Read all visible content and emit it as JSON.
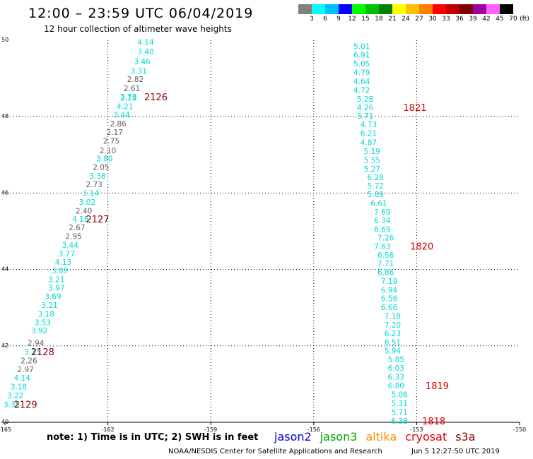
{
  "header": {
    "title": "12:00 – 23:59 UTC 06/04/2019",
    "subtitle": "12 hour collection of altimeter wave heights"
  },
  "color_scale": {
    "unit": "(ft)",
    "bins": [
      {
        "label": "3",
        "color": "#808080"
      },
      {
        "label": "6",
        "color": "#00ffff"
      },
      {
        "label": "9",
        "color": "#00bfff"
      },
      {
        "label": "12",
        "color": "#0000ff"
      },
      {
        "label": "15",
        "color": "#00ff00"
      },
      {
        "label": "18",
        "color": "#00c000"
      },
      {
        "label": "21",
        "color": "#008000"
      },
      {
        "label": "24",
        "color": "#ffff00"
      },
      {
        "label": "27",
        "color": "#ffc000"
      },
      {
        "label": "30",
        "color": "#ff8000"
      },
      {
        "label": "33",
        "color": "#ff0000"
      },
      {
        "label": "36",
        "color": "#c00000"
      },
      {
        "label": "39",
        "color": "#800000"
      },
      {
        "label": "42",
        "color": "#a000a0"
      },
      {
        "label": "45",
        "color": "#ff60ff"
      },
      {
        "label": "70",
        "color": "#000000"
      }
    ]
  },
  "chart_data": {
    "type": "scatter",
    "title": "12:00 – 23:59 UTC 06/04/2019",
    "subtitle": "12 hour collection of altimeter wave heights",
    "xlim": [
      -165,
      -150
    ],
    "ylim": [
      40,
      50
    ],
    "x_ticks": [
      "-165",
      "-162",
      "-159",
      "-156",
      "-153",
      "-150"
    ],
    "y_ticks": [
      "40",
      "42",
      "44",
      "46",
      "48",
      "50"
    ],
    "grid": true,
    "series": [
      {
        "color": "#00d8d8",
        "grey_color": "#606060",
        "tracks": [
          {
            "points": [
              {
                "x": -160.9,
                "y": 49.95,
                "v": "4.14",
                "c": 0
              },
              {
                "x": -160.9,
                "y": 49.7,
                "v": "3.40",
                "c": 0
              },
              {
                "x": -161.0,
                "y": 49.45,
                "v": "3.46",
                "c": 0
              },
              {
                "x": -161.1,
                "y": 49.2,
                "v": "3.31",
                "c": 0
              },
              {
                "x": -161.2,
                "y": 48.98,
                "v": "2.82",
                "c": 1
              },
              {
                "x": -161.3,
                "y": 48.74,
                "v": "2.61",
                "c": 1
              },
              {
                "x": -161.4,
                "y": 48.52,
                "v": "2.73",
                "c": 0
              },
              {
                "x": -161.4,
                "y": 48.49,
                "v": "3.19",
                "c": 0
              },
              {
                "x": -161.5,
                "y": 48.27,
                "v": "4.21",
                "c": 0
              },
              {
                "x": -161.6,
                "y": 48.05,
                "v": "3.44",
                "c": 0
              },
              {
                "x": -161.7,
                "y": 47.82,
                "v": "2.86",
                "c": 1
              },
              {
                "x": -161.8,
                "y": 47.6,
                "v": "2.17",
                "c": 1
              },
              {
                "x": -161.9,
                "y": 47.37,
                "v": "2.75",
                "c": 1
              },
              {
                "x": -162.0,
                "y": 47.12,
                "v": "2.10",
                "c": 1
              },
              {
                "x": -162.1,
                "y": 46.9,
                "v": "3.80",
                "c": 0
              },
              {
                "x": -162.2,
                "y": 46.68,
                "v": "2.05",
                "c": 1
              },
              {
                "x": -162.3,
                "y": 46.45,
                "v": "3.38",
                "c": 0
              },
              {
                "x": -162.4,
                "y": 46.23,
                "v": "2.73",
                "c": 1
              },
              {
                "x": -162.5,
                "y": 46.0,
                "v": "3.14",
                "c": 0
              },
              {
                "x": -162.6,
                "y": 45.77,
                "v": "3.02",
                "c": 0
              },
              {
                "x": -162.7,
                "y": 45.54,
                "v": "2.40",
                "c": 1
              },
              {
                "x": -162.8,
                "y": 45.32,
                "v": "4.18",
                "c": 0
              },
              {
                "x": -162.9,
                "y": 45.1,
                "v": "2.67",
                "c": 1
              },
              {
                "x": -163.0,
                "y": 44.87,
                "v": "2.95",
                "c": 1
              },
              {
                "x": -163.1,
                "y": 44.64,
                "v": "3.44",
                "c": 0
              },
              {
                "x": -163.2,
                "y": 44.42,
                "v": "3.77",
                "c": 0
              },
              {
                "x": -163.3,
                "y": 44.2,
                "v": "4.13",
                "c": 0
              },
              {
                "x": -163.4,
                "y": 43.97,
                "v": "3.89",
                "c": 0
              },
              {
                "x": -163.5,
                "y": 43.74,
                "v": "3.21",
                "c": 0
              },
              {
                "x": -163.5,
                "y": 43.52,
                "v": "3.97",
                "c": 0
              },
              {
                "x": -163.6,
                "y": 43.3,
                "v": "3.69",
                "c": 0
              },
              {
                "x": -163.7,
                "y": 43.07,
                "v": "3.21",
                "c": 0
              },
              {
                "x": -163.8,
                "y": 42.84,
                "v": "3.18",
                "c": 0
              },
              {
                "x": -163.9,
                "y": 42.62,
                "v": "3.53",
                "c": 0
              },
              {
                "x": -164.0,
                "y": 42.4,
                "v": "3.92",
                "c": 0
              },
              {
                "x": -164.1,
                "y": 42.08,
                "v": "2.94",
                "c": 1
              },
              {
                "x": -164.2,
                "y": 41.85,
                "v": "3.35",
                "c": 0
              },
              {
                "x": -164.3,
                "y": 41.62,
                "v": "2.26",
                "c": 1
              },
              {
                "x": -164.4,
                "y": 41.39,
                "v": "2.97",
                "c": 1
              },
              {
                "x": -164.5,
                "y": 41.16,
                "v": "4.14",
                "c": 0
              },
              {
                "x": -164.6,
                "y": 40.93,
                "v": "3.18",
                "c": 0
              },
              {
                "x": -164.7,
                "y": 40.7,
                "v": "3.22",
                "c": 0
              },
              {
                "x": -164.8,
                "y": 40.47,
                "v": "3.35",
                "c": 0
              }
            ],
            "time_labels": [
              {
                "x": -160.6,
                "y": 48.52,
                "t": "2126"
              },
              {
                "x": -162.3,
                "y": 45.32,
                "t": "2127"
              },
              {
                "x": -163.9,
                "y": 41.85,
                "t": "2128"
              },
              {
                "x": -164.4,
                "y": 40.47,
                "t": "2129"
              }
            ]
          },
          {
            "points": [
              {
                "x": -154.6,
                "y": 49.84,
                "v": "5.01",
                "c": 0
              },
              {
                "x": -154.6,
                "y": 49.62,
                "v": "6.91",
                "c": 0
              },
              {
                "x": -154.6,
                "y": 49.39,
                "v": "5.05",
                "c": 0
              },
              {
                "x": -154.6,
                "y": 49.16,
                "v": "4.79",
                "c": 0
              },
              {
                "x": -154.6,
                "y": 48.93,
                "v": "4.64",
                "c": 0
              },
              {
                "x": -154.6,
                "y": 48.7,
                "v": "4.72",
                "c": 0
              },
              {
                "x": -154.5,
                "y": 48.47,
                "v": "5.28",
                "c": 0
              },
              {
                "x": -154.5,
                "y": 48.24,
                "v": "4.26",
                "c": 0
              },
              {
                "x": -154.5,
                "y": 48.02,
                "v": "3.71",
                "c": 0
              },
              {
                "x": -154.4,
                "y": 47.8,
                "v": "4.73",
                "c": 0
              },
              {
                "x": -154.4,
                "y": 47.57,
                "v": "6.21",
                "c": 0
              },
              {
                "x": -154.4,
                "y": 47.33,
                "v": "4.87",
                "c": 0
              },
              {
                "x": -154.3,
                "y": 47.1,
                "v": "5.19",
                "c": 0
              },
              {
                "x": -154.3,
                "y": 46.87,
                "v": "5.55",
                "c": 0
              },
              {
                "x": -154.3,
                "y": 46.64,
                "v": "5.27",
                "c": 0
              },
              {
                "x": -154.2,
                "y": 46.41,
                "v": "6.28",
                "c": 0
              },
              {
                "x": -154.2,
                "y": 46.19,
                "v": "5.72",
                "c": 0
              },
              {
                "x": -154.2,
                "y": 45.97,
                "v": "5.89",
                "c": 0
              },
              {
                "x": -154.1,
                "y": 45.74,
                "v": "6.61",
                "c": 0
              },
              {
                "x": -154.0,
                "y": 45.51,
                "v": "7.69",
                "c": 0
              },
              {
                "x": -154.0,
                "y": 45.29,
                "v": "6.34",
                "c": 0
              },
              {
                "x": -154.0,
                "y": 45.06,
                "v": "6.69",
                "c": 0
              },
              {
                "x": -153.9,
                "y": 44.83,
                "v": "7.26",
                "c": 0
              },
              {
                "x": -154.0,
                "y": 44.61,
                "v": "7.63",
                "c": 0
              },
              {
                "x": -153.9,
                "y": 44.38,
                "v": "6.56",
                "c": 0
              },
              {
                "x": -153.9,
                "y": 44.16,
                "v": "7.71",
                "c": 0
              },
              {
                "x": -153.9,
                "y": 43.93,
                "v": "6.86",
                "c": 0
              },
              {
                "x": -153.8,
                "y": 43.7,
                "v": "7.19",
                "c": 0
              },
              {
                "x": -153.8,
                "y": 43.47,
                "v": "6.94",
                "c": 0
              },
              {
                "x": -153.8,
                "y": 43.24,
                "v": "6.56",
                "c": 0
              },
              {
                "x": -153.8,
                "y": 43.01,
                "v": "6.66",
                "c": 0
              },
              {
                "x": -153.7,
                "y": 42.78,
                "v": "7.18",
                "c": 0
              },
              {
                "x": -153.7,
                "y": 42.55,
                "v": "7.20",
                "c": 0
              },
              {
                "x": -153.7,
                "y": 42.33,
                "v": "6.23",
                "c": 0
              },
              {
                "x": -153.7,
                "y": 42.1,
                "v": "6.51",
                "c": 0
              },
              {
                "x": -153.7,
                "y": 41.88,
                "v": "5.94",
                "c": 0
              },
              {
                "x": -153.6,
                "y": 41.65,
                "v": "5.85",
                "c": 0
              },
              {
                "x": -153.6,
                "y": 41.42,
                "v": "6.03",
                "c": 0
              },
              {
                "x": -153.6,
                "y": 41.19,
                "v": "6.33",
                "c": 0
              },
              {
                "x": -153.6,
                "y": 40.96,
                "v": "6.80",
                "c": 0
              },
              {
                "x": -153.5,
                "y": 40.73,
                "v": "5.06",
                "c": 0
              },
              {
                "x": -153.5,
                "y": 40.5,
                "v": "5.31",
                "c": 0
              },
              {
                "x": -153.5,
                "y": 40.27,
                "v": "5.71",
                "c": 0
              },
              {
                "x": -153.5,
                "y": 40.04,
                "v": "6.38",
                "c": 0
              }
            ],
            "time_labels": [
              {
                "x": -153.05,
                "y": 48.24,
                "t": "1821"
              },
              {
                "x": -152.85,
                "y": 44.61,
                "t": "1820"
              },
              {
                "x": -152.4,
                "y": 40.96,
                "t": "1819"
              },
              {
                "x": -152.5,
                "y": 40.04,
                "t": "1818"
              }
            ]
          }
        ]
      }
    ]
  },
  "footer": {
    "note": "note: 1) Time is in UTC; 2) SWH is in feet",
    "satellites": [
      {
        "name": "jason2",
        "color": "#0000c8"
      },
      {
        "name": "jason3",
        "color": "#00a000"
      },
      {
        "name": "altika",
        "color": "#ff9000"
      },
      {
        "name": "cryosat",
        "color": "#e00000"
      },
      {
        "name": "s3a",
        "color": "#900000"
      }
    ],
    "credit": "NOAA/NESDIS Center for Satellite Applications and Research",
    "timestamp": "Jun  5 12:27:50 UTC 2019"
  }
}
